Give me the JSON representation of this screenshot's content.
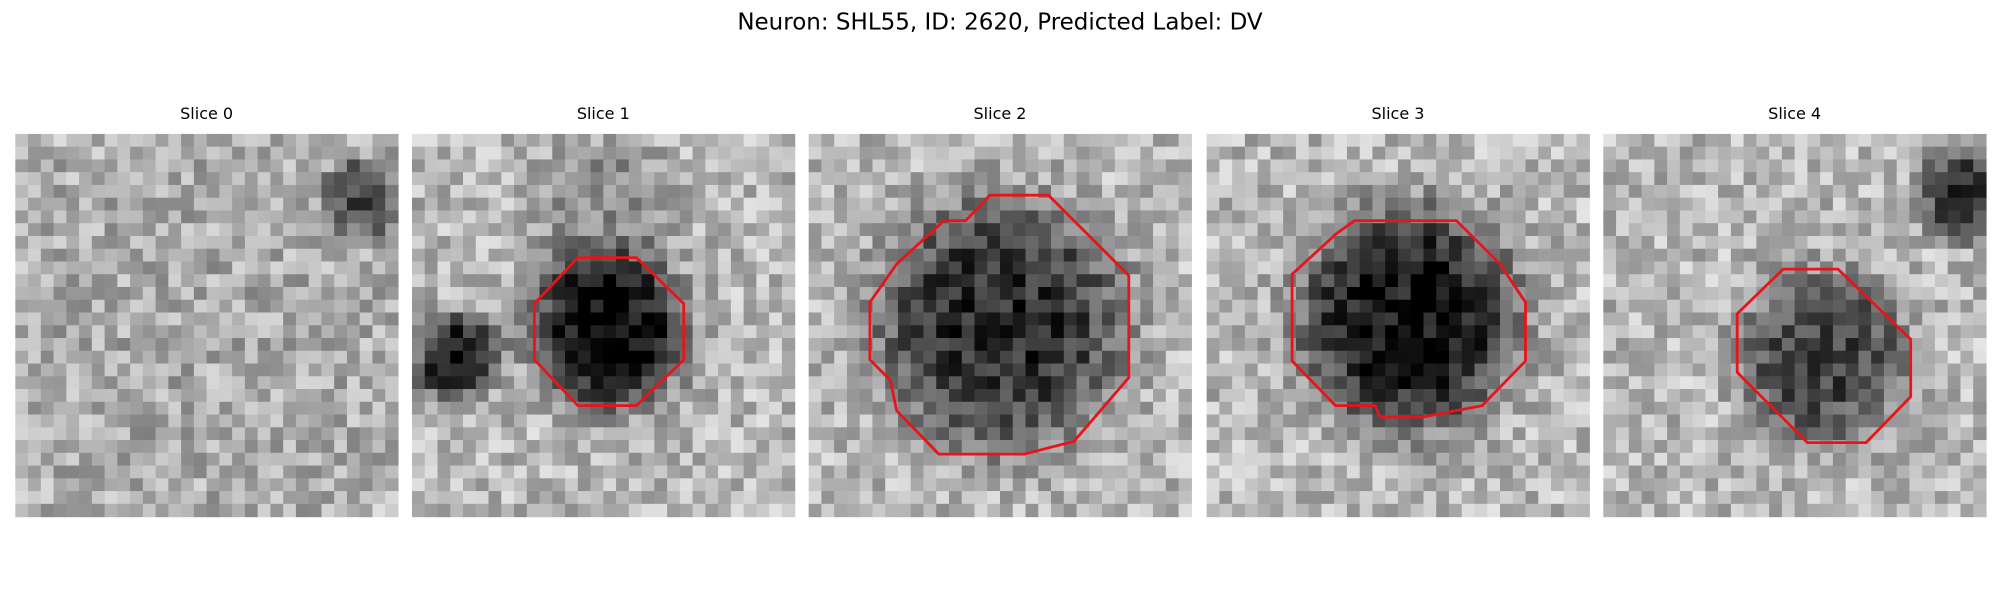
{
  "header": {
    "title": "Neuron: SHL55, ID: 2620, Predicted Label: DV"
  },
  "panels": [
    {
      "title": "Slice 0"
    },
    {
      "title": "Slice 1"
    },
    {
      "title": "Slice 2"
    },
    {
      "title": "Slice 3"
    },
    {
      "title": "Slice 4"
    }
  ]
}
